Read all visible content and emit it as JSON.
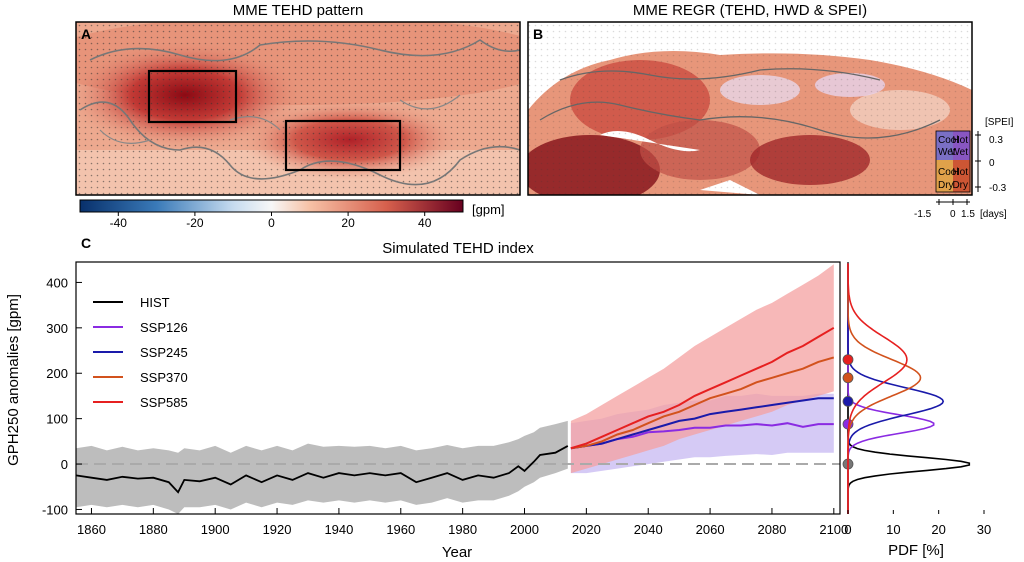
{
  "panels": {
    "a": {
      "letter": "A",
      "title": "MME TEHD pattern",
      "colorbar_unit": "[gpm]",
      "colorbar_ticks": [
        "-40",
        "-20",
        "0",
        "20",
        "40"
      ]
    },
    "b": {
      "letter": "B",
      "title": "MME REGR (TEHD, HWD & SPEI)",
      "legend": {
        "quadrants": [
          {
            "line1": "Cool",
            "line2": "Wet"
          },
          {
            "line1": "Hot",
            "line2": "Wet"
          },
          {
            "line1": "Cool",
            "line2": "Dry"
          },
          {
            "line1": "Hot",
            "line2": "Dry"
          }
        ],
        "y_unit": "[SPEI]",
        "y_ticks": [
          "0.3",
          "0",
          "-0.3"
        ],
        "x_unit": "[days]",
        "x_ticks": [
          "-1.5",
          "0",
          "1.5"
        ]
      }
    },
    "c": {
      "letter": "C"
    }
  },
  "colors": {
    "HIST": "#000000",
    "SSP126": "#8a2be2",
    "SSP245": "#1a1aaa",
    "SSP370": "#d2521d",
    "SSP585": "#e62020",
    "hist_band": "#bdbdbd",
    "ssp585_band": "#f4a0a0",
    "ssp126_band": "#b9a6ee"
  },
  "chart_data": {
    "type": "line",
    "title": "Simulated TEHD index",
    "xlabel": "Year",
    "ylabel": "GPH250 anomalies [gpm]",
    "xlim": [
      1855,
      2102
    ],
    "ylim": [
      -110,
      445
    ],
    "xticks": [
      1860,
      1880,
      1900,
      1920,
      1940,
      1960,
      1980,
      2000,
      2020,
      2040,
      2060,
      2080,
      2100
    ],
    "yticks": [
      -100,
      0,
      100,
      200,
      300,
      400
    ],
    "legend_position": "upper-left",
    "series": [
      {
        "name": "HIST",
        "key": "HIST",
        "x": [
          1855,
          1860,
          1865,
          1870,
          1875,
          1880,
          1885,
          1888,
          1890,
          1895,
          1900,
          1905,
          1910,
          1915,
          1920,
          1925,
          1930,
          1935,
          1940,
          1945,
          1950,
          1955,
          1960,
          1965,
          1970,
          1975,
          1980,
          1985,
          1990,
          1995,
          1998,
          2000,
          2003,
          2005,
          2010,
          2014
        ],
        "y": [
          -25,
          -30,
          -35,
          -28,
          -32,
          -30,
          -40,
          -62,
          -35,
          -38,
          -30,
          -45,
          -25,
          -40,
          -25,
          -35,
          -20,
          -30,
          -20,
          -25,
          -20,
          -25,
          -20,
          -40,
          -30,
          -20,
          -35,
          -25,
          -30,
          -20,
          -5,
          -15,
          5,
          20,
          25,
          40
        ],
        "band_low": [
          -95,
          -90,
          -95,
          -90,
          -95,
          -90,
          -100,
          -110,
          -95,
          -95,
          -90,
          -100,
          -85,
          -95,
          -85,
          -90,
          -80,
          -85,
          -80,
          -85,
          -80,
          -85,
          -80,
          -90,
          -85,
          -75,
          -85,
          -80,
          -80,
          -70,
          -60,
          -50,
          -40,
          -30,
          -20,
          -10
        ],
        "band_high": [
          35,
          40,
          30,
          38,
          30,
          35,
          30,
          25,
          35,
          30,
          40,
          25,
          40,
          30,
          40,
          30,
          45,
          38,
          40,
          38,
          40,
          35,
          40,
          30,
          35,
          42,
          35,
          40,
          40,
          48,
          55,
          62,
          70,
          80,
          88,
          95
        ]
      },
      {
        "name": "SSP126",
        "key": "SSP126",
        "x": [
          2015,
          2020,
          2025,
          2030,
          2035,
          2040,
          2045,
          2050,
          2055,
          2060,
          2065,
          2070,
          2075,
          2080,
          2085,
          2090,
          2095,
          2100
        ],
        "y": [
          35,
          40,
          45,
          55,
          60,
          70,
          72,
          75,
          80,
          80,
          85,
          85,
          88,
          85,
          90,
          82,
          88,
          88
        ],
        "band_low": [
          -20,
          -20,
          -15,
          -10,
          -5,
          0,
          5,
          10,
          15,
          15,
          18,
          20,
          22,
          20,
          25,
          25,
          25,
          25
        ],
        "band_high": [
          90,
          95,
          100,
          110,
          115,
          120,
          130,
          135,
          140,
          140,
          150,
          150,
          155,
          150,
          150,
          150,
          155,
          155
        ]
      },
      {
        "name": "SSP245",
        "key": "SSP245",
        "x": [
          2015,
          2020,
          2025,
          2030,
          2035,
          2040,
          2045,
          2050,
          2055,
          2060,
          2065,
          2070,
          2075,
          2080,
          2085,
          2090,
          2095,
          2100
        ],
        "y": [
          35,
          40,
          45,
          55,
          65,
          75,
          85,
          95,
          100,
          110,
          115,
          120,
          125,
          130,
          135,
          140,
          145,
          145
        ]
      },
      {
        "name": "SSP370",
        "key": "SSP370",
        "x": [
          2015,
          2020,
          2025,
          2030,
          2035,
          2040,
          2045,
          2050,
          2055,
          2060,
          2065,
          2070,
          2075,
          2080,
          2085,
          2090,
          2095,
          2100
        ],
        "y": [
          35,
          40,
          50,
          65,
          75,
          90,
          105,
          115,
          130,
          145,
          155,
          165,
          180,
          190,
          200,
          210,
          225,
          235
        ]
      },
      {
        "name": "SSP585",
        "key": "SSP585",
        "x": [
          2015,
          2020,
          2025,
          2030,
          2035,
          2040,
          2045,
          2050,
          2055,
          2060,
          2065,
          2070,
          2075,
          2080,
          2085,
          2090,
          2095,
          2100
        ],
        "y": [
          35,
          45,
          60,
          75,
          90,
          105,
          115,
          130,
          150,
          165,
          180,
          195,
          210,
          225,
          245,
          260,
          280,
          300
        ],
        "band_low": [
          -20,
          -10,
          0,
          10,
          20,
          30,
          40,
          55,
          65,
          75,
          85,
          95,
          105,
          115,
          130,
          140,
          150,
          160
        ],
        "band_high": [
          95,
          110,
          130,
          150,
          170,
          190,
          210,
          235,
          260,
          280,
          300,
          320,
          340,
          355,
          375,
          395,
          415,
          440
        ]
      }
    ],
    "pdf_panel": {
      "xlabel": "PDF [%]",
      "xlim": [
        0,
        30
      ],
      "xticks": [
        0,
        10,
        20,
        30
      ],
      "curves": [
        {
          "key": "HIST",
          "mean": 0,
          "sd": 15,
          "peak": 27,
          "dot": 0
        },
        {
          "key": "SSP126",
          "mean": 88,
          "sd": 20,
          "peak": 19,
          "dot": 88
        },
        {
          "key": "SSP245",
          "mean": 138,
          "sd": 30,
          "peak": 21,
          "dot": 138
        },
        {
          "key": "SSP370",
          "mean": 190,
          "sd": 40,
          "peak": 16,
          "dot": 190
        },
        {
          "key": "SSP585",
          "mean": 230,
          "sd": 50,
          "peak": 13,
          "dot": 230
        }
      ]
    }
  }
}
